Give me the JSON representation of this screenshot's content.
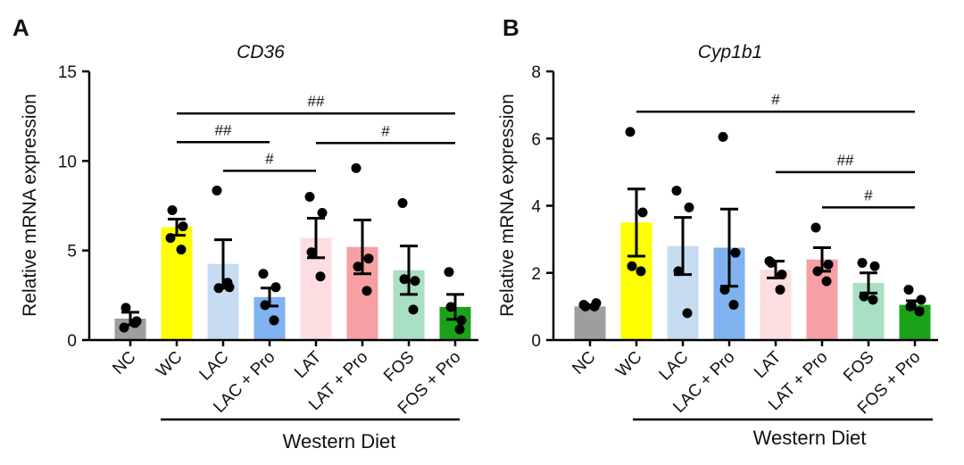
{
  "chart_data": [
    {
      "panel": "A",
      "type": "bar",
      "title": "CD36",
      "ylabel": "Relative mRNA expression",
      "xlabel": "",
      "ylim": [
        0,
        15
      ],
      "yticks": [
        0,
        5,
        10,
        15
      ],
      "categories": [
        "NC",
        "WC",
        "LAC",
        "LAC + Pro",
        "LAT",
        "LAT + Pro",
        "FOS",
        "FOS + Pro"
      ],
      "colors": [
        "#9e9e9e",
        "#ffff00",
        "#c5dcf3",
        "#7fb2ee",
        "#fcdde0",
        "#f6a0a3",
        "#a9dfc3",
        "#1ba21b"
      ],
      "values": [
        1.2,
        6.3,
        4.25,
        2.4,
        5.7,
        5.2,
        3.9,
        1.85
      ],
      "sem": [
        0.35,
        0.45,
        1.35,
        0.5,
        1.1,
        1.5,
        1.35,
        0.7
      ],
      "points": [
        [
          0.7,
          1.05,
          1.8,
          0.95
        ],
        [
          5.7,
          6.35,
          7.25,
          5.05
        ],
        [
          8.35,
          2.95,
          2.9,
          3.2
        ],
        [
          3.7,
          2.95,
          1.95,
          1.1
        ],
        [
          8.0,
          7.1,
          4.9,
          3.55
        ],
        [
          9.6,
          4.55,
          4.1,
          2.75
        ],
        [
          7.65,
          3.3,
          3.4,
          1.7
        ],
        [
          3.8,
          1.1,
          1.85,
          0.6
        ]
      ],
      "brackets": [
        {
          "from": 1,
          "to": 7,
          "label": "##",
          "y": 12.65
        },
        {
          "from": 1,
          "to": 3,
          "label": "##",
          "y": 11.05
        },
        {
          "from": 4,
          "to": 7,
          "label": "#",
          "y": 11.0
        },
        {
          "from": 2,
          "to": 4,
          "label": "#",
          "y": 9.45
        }
      ],
      "group_label": "Western Diet",
      "group_range": [
        1,
        7
      ]
    },
    {
      "panel": "B",
      "type": "bar",
      "title": "Cyp1b1",
      "ylabel": "Relative mRNA expression",
      "xlabel": "",
      "ylim": [
        0,
        8
      ],
      "yticks": [
        0,
        2,
        4,
        6,
        8
      ],
      "categories": [
        "NC",
        "WC",
        "LAC",
        "LAC + Pro",
        "LAT",
        "LAT + Pro",
        "FOS",
        "FOS + Pro"
      ],
      "colors": [
        "#9e9e9e",
        "#ffff00",
        "#c5dcf3",
        "#7fb2ee",
        "#fcdde0",
        "#f6a0a3",
        "#a9dfc3",
        "#1ba21b"
      ],
      "values": [
        1.0,
        3.5,
        2.8,
        2.75,
        2.1,
        2.4,
        1.7,
        1.05
      ],
      "sem": [
        0.04,
        1.0,
        0.85,
        1.15,
        0.25,
        0.35,
        0.3,
        0.12
      ],
      "points": [
        [
          1.05,
          1.1,
          1.0,
          1.0
        ],
        [
          6.2,
          3.8,
          2.2,
          2.05
        ],
        [
          4.45,
          3.95,
          2.05,
          0.8
        ],
        [
          6.05,
          2.6,
          1.5,
          1.05
        ],
        [
          2.35,
          1.95,
          2.3,
          1.5
        ],
        [
          3.35,
          2.25,
          2.05,
          1.75
        ],
        [
          2.3,
          2.2,
          1.3,
          1.2
        ],
        [
          1.5,
          1.2,
          1.0,
          0.85
        ]
      ],
      "brackets": [
        {
          "from": 1,
          "to": 7,
          "label": "#",
          "y": 6.8
        },
        {
          "from": 4,
          "to": 7,
          "label": "##",
          "y": 5.0
        },
        {
          "from": 5,
          "to": 7,
          "label": "#",
          "y": 3.95
        }
      ],
      "group_label": "Western Diet",
      "group_range": [
        1,
        7
      ]
    }
  ]
}
